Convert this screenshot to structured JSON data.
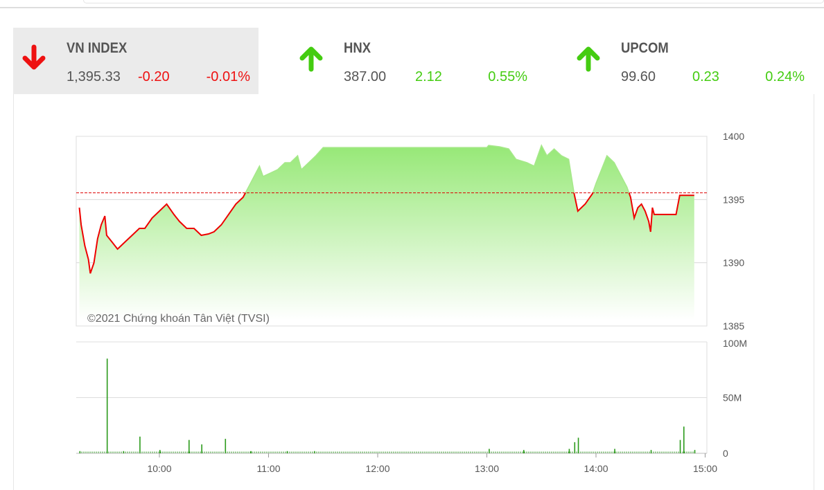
{
  "indices": [
    {
      "name": "VN INDEX",
      "value": "1,395.33",
      "change": "-0.20",
      "percent": "-0.01%",
      "direction": "down",
      "active": true
    },
    {
      "name": "HNX",
      "value": "387.00",
      "change": "2.12",
      "percent": "0.55%",
      "direction": "up",
      "active": false
    },
    {
      "name": "UPCOM",
      "value": "99.60",
      "change": "0.23",
      "percent": "0.24%",
      "direction": "up",
      "active": false
    }
  ],
  "colors": {
    "up": "#44cc11",
    "down": "#ee1111",
    "text": "#555555"
  },
  "chart": {
    "watermark": "©2021 Chứng khoán Tân Việt (TVSI)",
    "reference": 1395.53,
    "price_ylim": [
      1385,
      1400
    ],
    "price_ticks": [
      "1400",
      "1395",
      "1390",
      "1385"
    ],
    "volume_ylim": [
      0,
      100
    ],
    "volume_ticks": [
      "100M",
      "50M",
      "0"
    ],
    "x_ticks": [
      "10:00",
      "11:00",
      "12:00",
      "13:00",
      "14:00",
      "15:00"
    ],
    "price": [
      [
        "9:16",
        1394.36
      ],
      [
        "9:17",
        1393.0
      ],
      [
        "9:19",
        1391.35
      ],
      [
        "9:21",
        1390.26
      ],
      [
        "9:22",
        1389.16
      ],
      [
        "9:24",
        1389.98
      ],
      [
        "9:26",
        1391.9
      ],
      [
        "9:28",
        1393.0
      ],
      [
        "9:30",
        1393.7
      ],
      [
        "9:31",
        1392.17
      ],
      [
        "9:34",
        1391.63
      ],
      [
        "9:37",
        1391.08
      ],
      [
        "9:41",
        1391.63
      ],
      [
        "9:45",
        1392.17
      ],
      [
        "9:49",
        1392.72
      ],
      [
        "9:52",
        1392.72
      ],
      [
        "9:56",
        1393.54
      ],
      [
        "10:00",
        1394.09
      ],
      [
        "10:04",
        1394.64
      ],
      [
        "10:08",
        1393.82
      ],
      [
        "10:11",
        1393.27
      ],
      [
        "10:15",
        1392.72
      ],
      [
        "10:19",
        1392.72
      ],
      [
        "10:23",
        1392.17
      ],
      [
        "10:27",
        1392.28
      ],
      [
        "10:30",
        1392.45
      ],
      [
        "10:34",
        1393.0
      ],
      [
        "10:38",
        1393.82
      ],
      [
        "10:42",
        1394.64
      ],
      [
        "10:46",
        1395.18
      ],
      [
        "10:50",
        1396.28
      ],
      [
        "10:53",
        1397.1
      ],
      [
        "10:55",
        1397.65
      ],
      [
        "10:57",
        1396.83
      ],
      [
        "11:01",
        1397.1
      ],
      [
        "11:05",
        1397.37
      ],
      [
        "11:09",
        1397.92
      ],
      [
        "11:12",
        1397.92
      ],
      [
        "11:16",
        1398.47
      ],
      [
        "11:18",
        1397.37
      ],
      [
        "11:22",
        1397.92
      ],
      [
        "11:26",
        1398.47
      ],
      [
        "11:30",
        1399.12
      ],
      [
        "13:00",
        1399.12
      ],
      [
        "13:01",
        1399.29
      ],
      [
        "13:07",
        1399.18
      ],
      [
        "13:12",
        1399.01
      ],
      [
        "13:16",
        1398.19
      ],
      [
        "13:22",
        1397.92
      ],
      [
        "13:26",
        1397.65
      ],
      [
        "13:30",
        1399.29
      ],
      [
        "13:33",
        1398.47
      ],
      [
        "13:37",
        1399.01
      ],
      [
        "13:41",
        1398.47
      ],
      [
        "13:45",
        1398.19
      ],
      [
        "13:48",
        1395.46
      ],
      [
        "13:50",
        1394.09
      ],
      [
        "13:54",
        1394.64
      ],
      [
        "13:58",
        1395.46
      ],
      [
        "14:00",
        1396.28
      ],
      [
        "14:03",
        1397.37
      ],
      [
        "14:06",
        1398.47
      ],
      [
        "14:10",
        1397.92
      ],
      [
        "14:13",
        1397.1
      ],
      [
        "14:17",
        1396.0
      ],
      [
        "14:19",
        1395.18
      ],
      [
        "14:21",
        1393.54
      ],
      [
        "14:23",
        1394.36
      ],
      [
        "14:25",
        1394.64
      ],
      [
        "14:27",
        1394.09
      ],
      [
        "14:29",
        1393.27
      ],
      [
        "14:30",
        1392.45
      ],
      [
        "14:31",
        1394.36
      ],
      [
        "14:32",
        1393.82
      ],
      [
        "14:44",
        1393.82
      ],
      [
        "14:46",
        1395.33
      ],
      [
        "14:54",
        1395.33
      ]
    ],
    "volume": [
      [
        "9:16",
        2
      ],
      [
        "9:31",
        85
      ],
      [
        "9:40",
        2
      ],
      [
        "9:49",
        15
      ],
      [
        "10:00",
        3
      ],
      [
        "10:16",
        12
      ],
      [
        "10:23",
        8
      ],
      [
        "10:36",
        13
      ],
      [
        "10:50",
        2
      ],
      [
        "11:10",
        2
      ],
      [
        "11:25",
        2
      ],
      [
        "13:01",
        4
      ],
      [
        "13:20",
        3
      ],
      [
        "13:45",
        4
      ],
      [
        "13:48",
        10
      ],
      [
        "13:50",
        14
      ],
      [
        "14:10",
        4
      ],
      [
        "14:30",
        3
      ],
      [
        "14:46",
        12
      ],
      [
        "14:48",
        24
      ],
      [
        "14:54",
        3
      ]
    ]
  }
}
